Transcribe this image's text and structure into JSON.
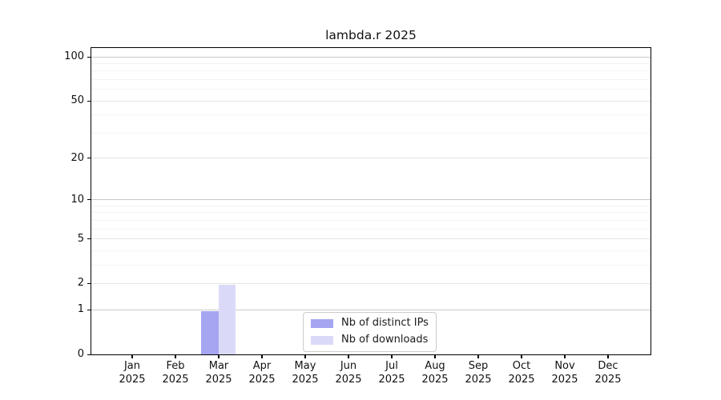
{
  "chart_data": {
    "type": "bar",
    "title": "lambda.r 2025",
    "categories": [
      "Jan 2025",
      "Feb 2025",
      "Mar 2025",
      "Apr 2025",
      "May 2025",
      "Jun 2025",
      "Jul 2025",
      "Aug 2025",
      "Sep 2025",
      "Oct 2025",
      "Nov 2025",
      "Dec 2025"
    ],
    "series": [
      {
        "name": "Nb of distinct IPs",
        "color": "#a5a5f2",
        "values": [
          0,
          0,
          1,
          0,
          0,
          0,
          0,
          0,
          0,
          0,
          0,
          0
        ]
      },
      {
        "name": "Nb of downloads",
        "color": "#dadaf8",
        "values": [
          0,
          0,
          2,
          0,
          0,
          0,
          0,
          0,
          0,
          0,
          0,
          0
        ]
      }
    ],
    "xlabel": "",
    "ylabel": "",
    "yscale": "log1p",
    "ylim": [
      0,
      117
    ],
    "yticks": [
      0,
      1,
      2,
      5,
      10,
      20,
      50,
      100
    ],
    "minor_gridlines": [
      3,
      4,
      6,
      7,
      8,
      9,
      30,
      40,
      60,
      70,
      80,
      90
    ],
    "grid": true,
    "legend_position": "inside lower center"
  },
  "colors": {
    "background": "#ffffff",
    "spine": "#000000",
    "gridline_major": "#c9c9c9",
    "gridline_mid": "#e4e4e4",
    "gridline_minor": "#f4f4f4",
    "text": "#111111",
    "legend_border": "#cccccc"
  }
}
